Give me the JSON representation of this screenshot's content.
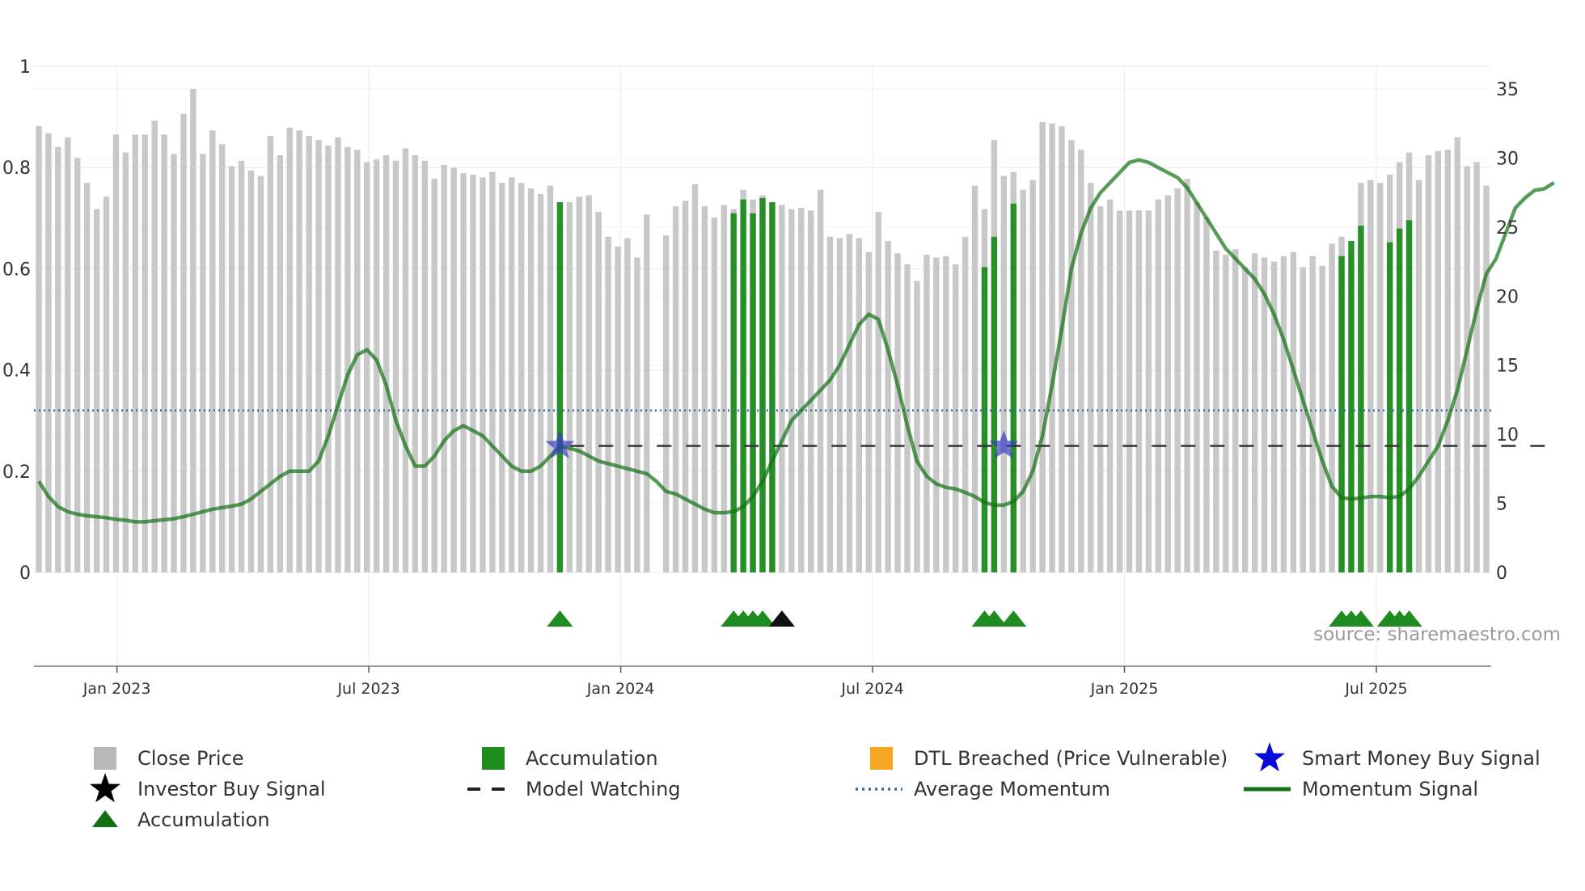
{
  "chart_data": {
    "type": "bar",
    "title": "",
    "xlabel": "",
    "ylabel": "",
    "source_label": "source: sharemaestro.com",
    "x_ticks": [
      "Jan 2023",
      "Jul 2023",
      "Jan 2024",
      "Jul 2024",
      "Jan 2025",
      "Jul 2025"
    ],
    "y_left_ticks": [
      "0",
      "0.2",
      "0.4",
      "0.6",
      "0.8",
      "1"
    ],
    "y_right_ticks": [
      "0",
      "5",
      "10",
      "15",
      "20",
      "25",
      "30",
      "35"
    ],
    "ylim_left": [
      0,
      1
    ],
    "ylim_right": [
      0,
      35
    ],
    "grid": true,
    "legend_position": "bottom",
    "legend": [
      {
        "label": "Close Price",
        "marker": "square",
        "color": "#b8b8b8"
      },
      {
        "label": "Accumulation",
        "marker": "square",
        "color": "#1e8c1e"
      },
      {
        "label": "DTL Breached (Price Vulnerable)",
        "marker": "square",
        "color": "#f5a623"
      },
      {
        "label": "Smart Money Buy Signal",
        "marker": "star",
        "color": "#0a0ad8"
      },
      {
        "label": "Investor Buy Signal",
        "marker": "star",
        "color": "#000000"
      },
      {
        "label": "Model Watching",
        "marker": "dash",
        "color": "#222222"
      },
      {
        "label": "Average Momentum",
        "marker": "dot",
        "color": "#2f6fa8"
      },
      {
        "label": "Momentum Signal",
        "marker": "line",
        "color": "#117011"
      },
      {
        "label": "Accumulation",
        "marker": "triangle",
        "color": "#117011"
      }
    ],
    "close_price": [
      32.3,
      31.8,
      30.8,
      31.5,
      30.0,
      28.2,
      26.3,
      27.2,
      31.7,
      30.4,
      31.7,
      31.7,
      32.7,
      31.7,
      30.3,
      33.2,
      35.0,
      30.3,
      32.0,
      31.0,
      29.4,
      29.8,
      29.1,
      28.7,
      31.6,
      30.2,
      32.2,
      32.0,
      31.6,
      31.3,
      30.9,
      31.5,
      30.8,
      30.6,
      29.7,
      29.9,
      30.2,
      29.8,
      30.7,
      30.2,
      29.8,
      28.5,
      29.5,
      29.3,
      28.9,
      28.8,
      28.6,
      29.0,
      28.2,
      28.6,
      28.2,
      27.8,
      27.4,
      28.0,
      25.1,
      26.8,
      27.2,
      27.3,
      26.1,
      24.3,
      23.6,
      24.2,
      22.8,
      25.9,
      null,
      24.4,
      26.5,
      26.9,
      28.1,
      26.5,
      25.7,
      26.6,
      26.3,
      27.7,
      27.0,
      27.3,
      26.8,
      26.6,
      26.3,
      26.4,
      26.2,
      27.7,
      24.3,
      24.2,
      24.5,
      24.2,
      23.2,
      26.1,
      24.0,
      23.1,
      22.3,
      21.1,
      23.0,
      22.8,
      22.9,
      22.3,
      24.3,
      28.0,
      26.3,
      31.3,
      28.7,
      29.0,
      27.7,
      28.4,
      32.6,
      32.5,
      32.3,
      31.3,
      30.6,
      28.2,
      26.5,
      27.0,
      26.2,
      26.2,
      26.2,
      26.2,
      27.0,
      27.3,
      27.8,
      28.5,
      26.8,
      25.7,
      23.3,
      23.0,
      23.4,
      22.1,
      23.1,
      22.8,
      22.5,
      22.9,
      23.2,
      22.1,
      22.9,
      22.2,
      23.8,
      24.3,
      23.1,
      28.2,
      28.4,
      28.2,
      28.8,
      29.7,
      30.4,
      28.4,
      30.2,
      30.5,
      30.6,
      31.5,
      29.4,
      29.7,
      28.0
    ],
    "accumulation_bars": [
      {
        "index": 54,
        "value": 26.8
      },
      {
        "index": 72,
        "value": 26.0
      },
      {
        "index": 73,
        "value": 27.0
      },
      {
        "index": 74,
        "value": 26.0
      },
      {
        "index": 75,
        "value": 27.1
      },
      {
        "index": 76,
        "value": 26.8
      },
      {
        "index": 98,
        "value": 22.1
      },
      {
        "index": 99,
        "value": 24.3
      },
      {
        "index": 101,
        "value": 26.7
      },
      {
        "index": 135,
        "value": 22.9
      },
      {
        "index": 136,
        "value": 24.0
      },
      {
        "index": 137,
        "value": 25.1
      },
      {
        "index": 140,
        "value": 23.9
      },
      {
        "index": 141,
        "value": 24.9
      },
      {
        "index": 142,
        "value": 25.5
      }
    ],
    "momentum_signal": [
      [
        0,
        0.18
      ],
      [
        1,
        0.15
      ],
      [
        2,
        0.13
      ],
      [
        3,
        0.12
      ],
      [
        4,
        0.115
      ],
      [
        5,
        0.112
      ],
      [
        6,
        0.11
      ],
      [
        7,
        0.108
      ],
      [
        8,
        0.105
      ],
      [
        9,
        0.103
      ],
      [
        10,
        0.1
      ],
      [
        11,
        0.1
      ],
      [
        12,
        0.102
      ],
      [
        13,
        0.104
      ],
      [
        14,
        0.106
      ],
      [
        15,
        0.11
      ],
      [
        16,
        0.115
      ],
      [
        17,
        0.12
      ],
      [
        18,
        0.125
      ],
      [
        19,
        0.128
      ],
      [
        20,
        0.131
      ],
      [
        21,
        0.135
      ],
      [
        22,
        0.145
      ],
      [
        23,
        0.16
      ],
      [
        24,
        0.175
      ],
      [
        25,
        0.19
      ],
      [
        26,
        0.2
      ],
      [
        27,
        0.2
      ],
      [
        28,
        0.2
      ],
      [
        29,
        0.22
      ],
      [
        30,
        0.27
      ],
      [
        31,
        0.33
      ],
      [
        32,
        0.39
      ],
      [
        33,
        0.43
      ],
      [
        34,
        0.44
      ],
      [
        35,
        0.42
      ],
      [
        36,
        0.37
      ],
      [
        37,
        0.3
      ],
      [
        38,
        0.25
      ],
      [
        39,
        0.21
      ],
      [
        40,
        0.21
      ],
      [
        41,
        0.23
      ],
      [
        42,
        0.26
      ],
      [
        43,
        0.28
      ],
      [
        44,
        0.29
      ],
      [
        45,
        0.28
      ],
      [
        46,
        0.27
      ],
      [
        47,
        0.25
      ],
      [
        48,
        0.23
      ],
      [
        49,
        0.21
      ],
      [
        50,
        0.2
      ],
      [
        51,
        0.2
      ],
      [
        52,
        0.21
      ],
      [
        53,
        0.23
      ],
      [
        54,
        0.25
      ],
      [
        55,
        0.245
      ],
      [
        56,
        0.24
      ],
      [
        57,
        0.23
      ],
      [
        58,
        0.22
      ],
      [
        59,
        0.215
      ],
      [
        60,
        0.21
      ],
      [
        61,
        0.205
      ],
      [
        62,
        0.2
      ],
      [
        63,
        0.195
      ],
      [
        64,
        0.18
      ],
      [
        65,
        0.16
      ],
      [
        66,
        0.155
      ],
      [
        67,
        0.145
      ],
      [
        68,
        0.135
      ],
      [
        69,
        0.125
      ],
      [
        70,
        0.118
      ],
      [
        71,
        0.118
      ],
      [
        72,
        0.12
      ],
      [
        73,
        0.13
      ],
      [
        74,
        0.15
      ],
      [
        75,
        0.18
      ],
      [
        76,
        0.22
      ],
      [
        77,
        0.26
      ],
      [
        78,
        0.3
      ],
      [
        79,
        0.32
      ],
      [
        80,
        0.34
      ],
      [
        81,
        0.36
      ],
      [
        82,
        0.38
      ],
      [
        83,
        0.41
      ],
      [
        84,
        0.45
      ],
      [
        85,
        0.49
      ],
      [
        86,
        0.51
      ],
      [
        87,
        0.5
      ],
      [
        88,
        0.44
      ],
      [
        89,
        0.37
      ],
      [
        90,
        0.29
      ],
      [
        91,
        0.22
      ],
      [
        92,
        0.19
      ],
      [
        93,
        0.175
      ],
      [
        94,
        0.168
      ],
      [
        95,
        0.165
      ],
      [
        96,
        0.158
      ],
      [
        97,
        0.15
      ],
      [
        98,
        0.138
      ],
      [
        99,
        0.133
      ],
      [
        100,
        0.133
      ],
      [
        101,
        0.14
      ],
      [
        102,
        0.16
      ],
      [
        103,
        0.2
      ],
      [
        104,
        0.27
      ],
      [
        105,
        0.37
      ],
      [
        106,
        0.48
      ],
      [
        107,
        0.6
      ],
      [
        108,
        0.67
      ],
      [
        109,
        0.72
      ],
      [
        110,
        0.75
      ],
      [
        111,
        0.77
      ],
      [
        112,
        0.79
      ],
      [
        113,
        0.81
      ],
      [
        114,
        0.815
      ],
      [
        115,
        0.81
      ],
      [
        116,
        0.8
      ],
      [
        117,
        0.79
      ],
      [
        118,
        0.78
      ],
      [
        119,
        0.76
      ],
      [
        120,
        0.73
      ],
      [
        121,
        0.7
      ],
      [
        122,
        0.67
      ],
      [
        123,
        0.64
      ],
      [
        124,
        0.62
      ],
      [
        125,
        0.6
      ],
      [
        126,
        0.58
      ],
      [
        127,
        0.55
      ],
      [
        128,
        0.51
      ],
      [
        129,
        0.46
      ],
      [
        130,
        0.4
      ],
      [
        131,
        0.34
      ],
      [
        132,
        0.28
      ],
      [
        133,
        0.22
      ],
      [
        134,
        0.17
      ],
      [
        135,
        0.148
      ],
      [
        136,
        0.145
      ],
      [
        137,
        0.147
      ],
      [
        138,
        0.15
      ],
      [
        139,
        0.15
      ],
      [
        140,
        0.148
      ],
      [
        141,
        0.15
      ],
      [
        142,
        0.165
      ],
      [
        143,
        0.19
      ],
      [
        144,
        0.22
      ],
      [
        145,
        0.25
      ],
      [
        146,
        0.3
      ],
      [
        147,
        0.36
      ],
      [
        148,
        0.44
      ],
      [
        149,
        0.52
      ],
      [
        150,
        0.59
      ],
      [
        151,
        0.62
      ],
      [
        152,
        0.67
      ],
      [
        153,
        0.72
      ],
      [
        154,
        0.74
      ],
      [
        155,
        0.755
      ],
      [
        156,
        0.758
      ],
      [
        157,
        0.77
      ]
    ],
    "average_momentum": 0.32,
    "model_watching_level": 0.25,
    "model_watching_range": [
      55,
      157
    ],
    "smart_money_buy_signals": [
      {
        "index": 54,
        "value": 0.25
      },
      {
        "index": 100,
        "value": 0.25
      }
    ],
    "investor_buy_signals": [
      {
        "index": 77,
        "type": "triangle"
      }
    ],
    "accumulation_triangles": [
      {
        "index": 54
      },
      {
        "index": 72
      },
      {
        "index": 73
      },
      {
        "index": 74
      },
      {
        "index": 75
      },
      {
        "index": 98
      },
      {
        "index": 99
      },
      {
        "index": 101
      },
      {
        "index": 135
      },
      {
        "index": 136
      },
      {
        "index": 137
      },
      {
        "index": 140
      },
      {
        "index": 141
      },
      {
        "index": 142
      }
    ]
  }
}
